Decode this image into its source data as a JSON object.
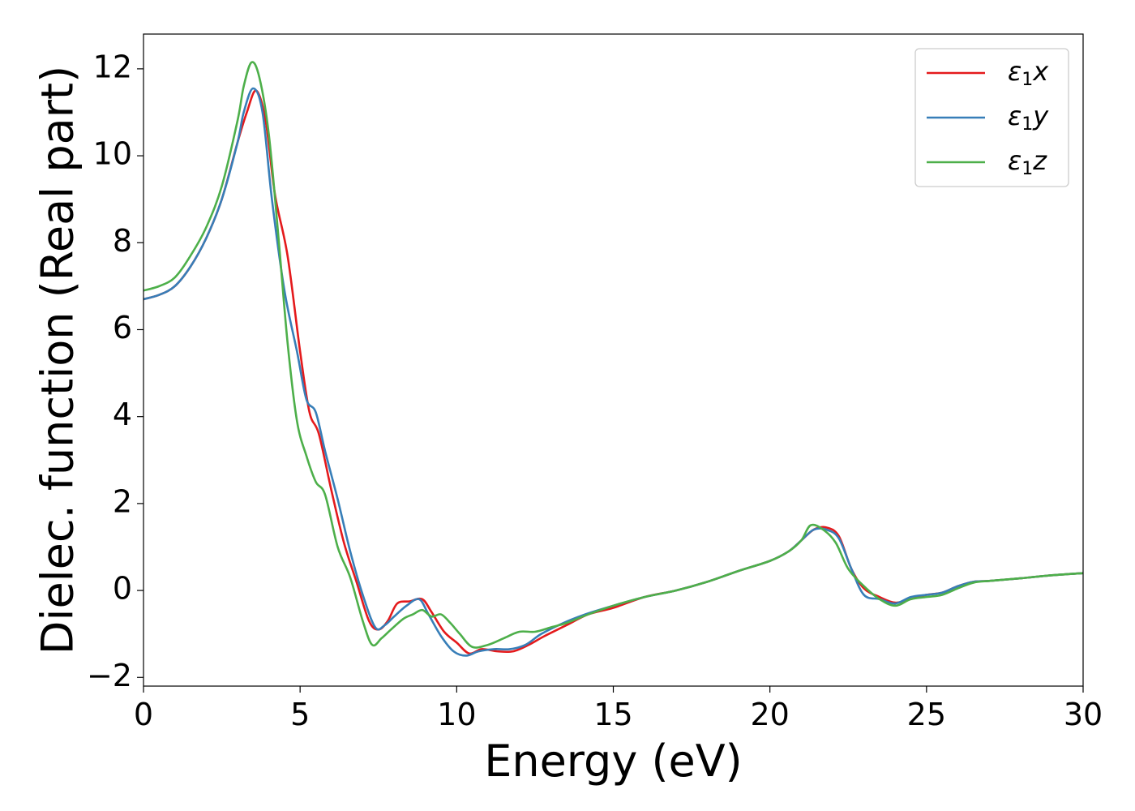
{
  "chart_data": {
    "type": "line",
    "title": "",
    "xlabel": "Energy (eV)",
    "ylabel": "Dielec. function (Real part)",
    "xlim": [
      0,
      30
    ],
    "ylim": [
      -2.2,
      12.8
    ],
    "xticks": [
      0,
      5,
      10,
      15,
      20,
      25,
      30
    ],
    "xtick_labels": [
      "0",
      "5",
      "10",
      "15",
      "20",
      "25",
      "30"
    ],
    "yticks": [
      -2,
      0,
      2,
      4,
      6,
      8,
      10,
      12
    ],
    "ytick_labels": [
      "−2",
      "0",
      "2",
      "4",
      "6",
      "8",
      "10",
      "12"
    ],
    "grid": false,
    "legend_position": "top-right",
    "series": [
      {
        "name": "ε1x",
        "name_main": "ε",
        "name_sub": "1",
        "name_tail": "x",
        "color": "#e41a1c",
        "x": [
          0,
          0.5,
          1,
          1.5,
          2,
          2.5,
          3,
          3.3,
          3.6,
          3.9,
          4.2,
          4.6,
          5,
          5.3,
          5.6,
          6,
          6.4,
          6.8,
          7.2,
          7.5,
          7.8,
          8.1,
          8.5,
          8.9,
          9.2,
          9.6,
          10,
          10.4,
          10.8,
          11.3,
          11.8,
          12.3,
          12.8,
          13.5,
          14.2,
          15,
          16,
          17,
          18,
          19,
          20,
          20.6,
          21,
          21.4,
          21.8,
          22.2,
          22.6,
          23,
          23.5,
          24,
          24.5,
          25,
          25.5,
          26,
          26.5,
          27,
          28,
          29,
          30
        ],
        "y": [
          6.7,
          6.8,
          7.0,
          7.45,
          8.1,
          9.0,
          10.3,
          11.0,
          11.5,
          10.8,
          9.1,
          7.7,
          5.5,
          4.1,
          3.6,
          2.3,
          1.1,
          0.2,
          -0.7,
          -0.9,
          -0.7,
          -0.3,
          -0.25,
          -0.2,
          -0.5,
          -0.95,
          -1.2,
          -1.45,
          -1.35,
          -1.4,
          -1.4,
          -1.25,
          -1.05,
          -0.8,
          -0.55,
          -0.4,
          -0.15,
          0.0,
          0.2,
          0.45,
          0.68,
          0.9,
          1.15,
          1.4,
          1.45,
          1.25,
          0.5,
          0.05,
          -0.15,
          -0.28,
          -0.2,
          -0.1,
          -0.05,
          0.1,
          0.2,
          0.22,
          0.28,
          0.35,
          0.4
        ]
      },
      {
        "name": "ε1y",
        "name_main": "ε",
        "name_sub": "1",
        "name_tail": "y",
        "color": "#377eb8",
        "x": [
          0,
          0.5,
          1,
          1.5,
          2,
          2.5,
          3,
          3.2,
          3.5,
          3.8,
          4.1,
          4.5,
          4.9,
          5.2,
          5.5,
          5.8,
          6.2,
          6.6,
          7.0,
          7.4,
          7.7,
          8.0,
          8.4,
          8.8,
          9.1,
          9.5,
          9.9,
          10.3,
          10.7,
          11.2,
          11.7,
          12.2,
          12.7,
          13.4,
          14.1,
          15,
          16,
          17,
          18,
          19,
          20,
          20.6,
          21,
          21.4,
          21.8,
          22.2,
          22.6,
          23,
          23.5,
          24,
          24.5,
          25,
          25.5,
          26,
          26.5,
          27,
          28,
          29,
          30
        ],
        "y": [
          6.7,
          6.8,
          7.0,
          7.45,
          8.1,
          9.0,
          10.3,
          11.0,
          11.55,
          11.0,
          9.0,
          6.9,
          5.5,
          4.4,
          4.1,
          3.2,
          2.1,
          0.9,
          -0.1,
          -0.85,
          -0.8,
          -0.6,
          -0.35,
          -0.2,
          -0.55,
          -1.05,
          -1.4,
          -1.5,
          -1.4,
          -1.35,
          -1.35,
          -1.25,
          -1.0,
          -0.75,
          -0.55,
          -0.35,
          -0.15,
          0.0,
          0.2,
          0.45,
          0.68,
          0.9,
          1.15,
          1.4,
          1.4,
          1.2,
          0.5,
          -0.1,
          -0.2,
          -0.3,
          -0.15,
          -0.1,
          -0.05,
          0.1,
          0.2,
          0.22,
          0.28,
          0.35,
          0.4
        ]
      },
      {
        "name": "ε1z",
        "name_main": "ε",
        "name_sub": "1",
        "name_tail": "z",
        "color": "#4daf4a",
        "x": [
          0,
          0.5,
          1,
          1.5,
          2,
          2.5,
          3,
          3.2,
          3.45,
          3.7,
          4.0,
          4.3,
          4.6,
          4.9,
          5.2,
          5.5,
          5.8,
          6.2,
          6.6,
          7.0,
          7.3,
          7.6,
          7.9,
          8.3,
          8.6,
          8.9,
          9.2,
          9.5,
          9.8,
          10.1,
          10.5,
          11.0,
          11.5,
          12.0,
          12.5,
          13.0,
          13.5,
          14.2,
          15,
          16,
          17,
          18,
          19,
          20,
          20.6,
          21,
          21.3,
          21.7,
          22.1,
          22.5,
          23,
          23.5,
          24,
          24.5,
          25,
          25.5,
          26,
          26.5,
          27,
          28,
          29,
          30
        ],
        "y": [
          6.9,
          7.0,
          7.2,
          7.7,
          8.35,
          9.3,
          10.8,
          11.6,
          12.15,
          11.8,
          10.5,
          8.2,
          5.7,
          3.9,
          3.1,
          2.5,
          2.2,
          1.0,
          0.3,
          -0.7,
          -1.25,
          -1.1,
          -0.9,
          -0.65,
          -0.55,
          -0.45,
          -0.6,
          -0.55,
          -0.75,
          -1.0,
          -1.3,
          -1.25,
          -1.1,
          -0.95,
          -0.95,
          -0.85,
          -0.75,
          -0.55,
          -0.35,
          -0.15,
          0.0,
          0.2,
          0.45,
          0.68,
          0.9,
          1.15,
          1.5,
          1.4,
          1.1,
          0.5,
          0.1,
          -0.2,
          -0.35,
          -0.2,
          -0.15,
          -0.1,
          0.05,
          0.18,
          0.22,
          0.28,
          0.35,
          0.4
        ]
      }
    ]
  }
}
